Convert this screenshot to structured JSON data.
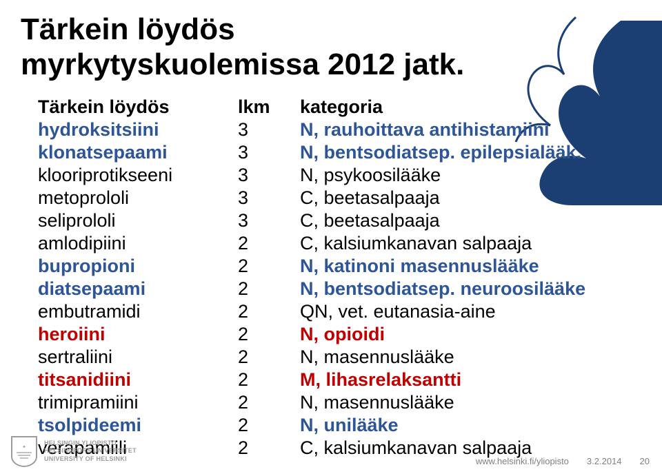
{
  "title": "Tärkein löydös\nmyrkytyskuolemissa 2012 jatk.",
  "flame": {
    "fill": "#1b3f73",
    "outline": "#1b3f73"
  },
  "header": {
    "c1": "Tärkein löydös",
    "c2": "lkm",
    "c3": "kategoria"
  },
  "rows": [
    {
      "name": "hydroksitsiini",
      "lkm": "3",
      "kat": "N, rauhoittava antihistamiini",
      "name_color": "#2d5597",
      "name_bold": true,
      "kat_color": "#2d5597",
      "kat_bold": true
    },
    {
      "name": "klonatsepaami",
      "lkm": "3",
      "kat": "N, bentsodiatsep. epilepsialääk.",
      "name_color": "#2d5597",
      "name_bold": true,
      "kat_color": "#2d5597",
      "kat_bold": true
    },
    {
      "name": "klooriprotikseeni",
      "lkm": "3",
      "kat": "N, psykoosilääke",
      "name_color": "#000000",
      "name_bold": false,
      "kat_color": "#000000",
      "kat_bold": false
    },
    {
      "name": "metoprololi",
      "lkm": "3",
      "kat": "C, beetasalpaaja",
      "name_color": "#000000",
      "name_bold": false,
      "kat_color": "#000000",
      "kat_bold": false
    },
    {
      "name": "seliprololi",
      "lkm": "3",
      "kat": "C, beetasalpaaja",
      "name_color": "#000000",
      "name_bold": false,
      "kat_color": "#000000",
      "kat_bold": false
    },
    {
      "name": "amlodipiini",
      "lkm": "2",
      "kat": "C, kalsiumkanavan salpaaja",
      "name_color": "#000000",
      "name_bold": false,
      "kat_color": "#000000",
      "kat_bold": false
    },
    {
      "name": "bupropioni",
      "lkm": "2",
      "kat": "N, katinoni masennuslääke",
      "name_color": "#2d5597",
      "name_bold": true,
      "kat_color": "#2d5597",
      "kat_bold": true
    },
    {
      "name": "diatsepaami",
      "lkm": "2",
      "kat": "N, bentsodiatsep. neuroosilääke",
      "name_color": "#2d5597",
      "name_bold": true,
      "kat_color": "#2d5597",
      "kat_bold": true
    },
    {
      "name": "embutramidi",
      "lkm": "2",
      "kat": "QN, vet. eutanasia-aine",
      "name_color": "#000000",
      "name_bold": false,
      "kat_color": "#000000",
      "kat_bold": false
    },
    {
      "name": "heroiini",
      "lkm": "2",
      "kat": "N, opioidi",
      "name_color": "#c00000",
      "name_bold": true,
      "kat_color": "#c00000",
      "kat_bold": true
    },
    {
      "name": "sertraliini",
      "lkm": "2",
      "kat": "N, masennuslääke",
      "name_color": "#000000",
      "name_bold": false,
      "kat_color": "#000000",
      "kat_bold": false
    },
    {
      "name": "titsanidiini",
      "lkm": "2",
      "kat": "M, lihasrelaksantti",
      "name_color": "#c00000",
      "name_bold": true,
      "kat_color": "#c00000",
      "kat_bold": true
    },
    {
      "name": "trimipramiini",
      "lkm": "2",
      "kat": "N, masennuslääke",
      "name_color": "#000000",
      "name_bold": false,
      "kat_color": "#000000",
      "kat_bold": false
    },
    {
      "name": "tsolpideemi",
      "lkm": "2",
      "kat": "N, unilääke",
      "name_color": "#2d5597",
      "name_bold": true,
      "kat_color": "#2d5597",
      "kat_bold": true
    },
    {
      "name": "verapamiili",
      "lkm": "2",
      "kat": "C, kalsiumkanavan salpaaja",
      "name_color": "#000000",
      "name_bold": false,
      "kat_color": "#000000",
      "kat_bold": false
    }
  ],
  "logo": {
    "lines": [
      "HELSINGIN YLIOPISTO",
      "HELSINGFORS UNIVERSITET",
      "UNIVERSITY OF HELSINKI"
    ],
    "color": "#9c9c9c"
  },
  "footer": {
    "url": "www.helsinki.fi/yliopisto",
    "date": "3.2.2014",
    "page": "20"
  }
}
